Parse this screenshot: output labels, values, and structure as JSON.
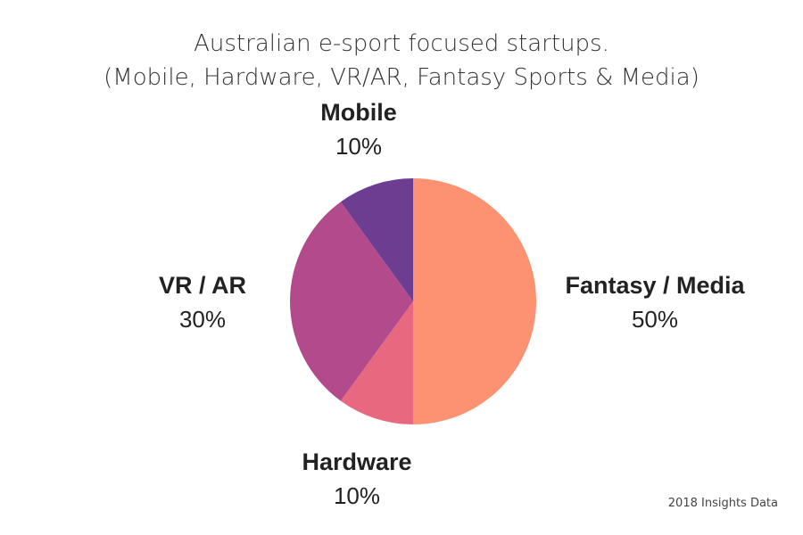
{
  "chart_data": {
    "type": "pie",
    "title_lines": [
      "Australian e-sport focused startups.",
      "(Mobile, Hardware, VR/AR, Fantasy Sports & Media)"
    ],
    "slices": [
      {
        "name": "Fantasy / Media",
        "value": 50,
        "label": "50%",
        "color": "#fc9272"
      },
      {
        "name": "Hardware",
        "value": 10,
        "label": "10%",
        "color": "#e8697f"
      },
      {
        "name": "VR / AR",
        "value": 30,
        "label": "30%",
        "color": "#b24a8c"
      },
      {
        "name": "Mobile",
        "value": 10,
        "label": "10%",
        "color": "#6d3d92"
      }
    ],
    "start_angle": "top",
    "direction": "clockwise"
  },
  "footer": "2018 Insights Data"
}
